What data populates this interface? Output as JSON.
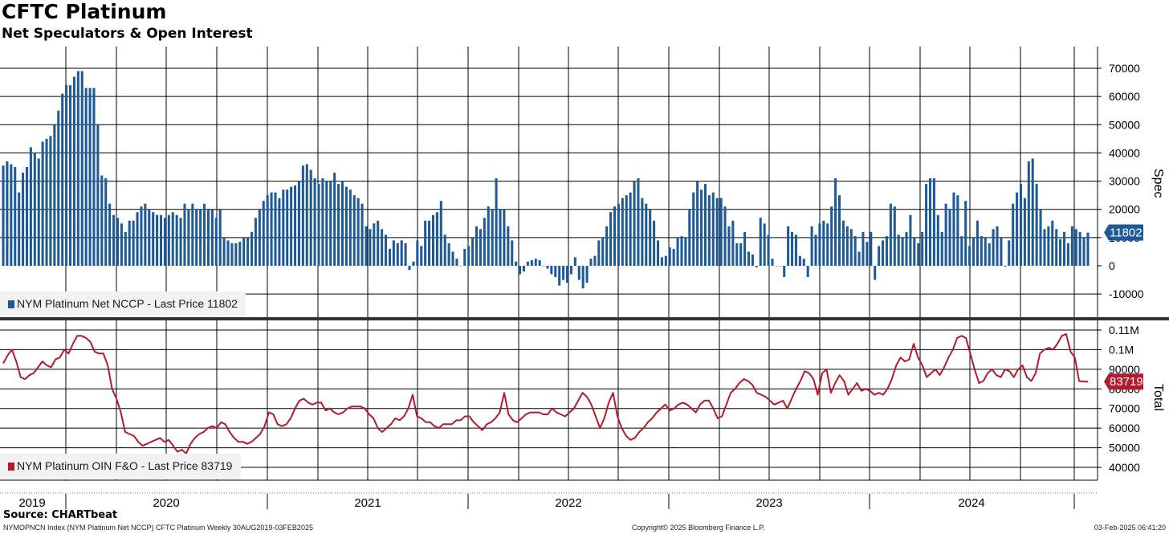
{
  "title": "CFTC Platinum",
  "subtitle": "Net Speculators & Open Interest",
  "source": "Source: CHARTbeat",
  "footer": {
    "left": "NYMOPNCN Index (NYM Platinum Net NCCP) CFTC Platinum  Weekly 30AUG2019-03FEB2025",
    "center": "Copyright© 2025 Bloomberg Finance L.P.",
    "right": "03-Feb-2025 06:41:20"
  },
  "colors": {
    "spec_bar": "#1f5a96",
    "total_line": "#b01b2e",
    "grid": "#000000",
    "divider": "#333333"
  },
  "chart_data": [
    {
      "type": "bar",
      "ylabel": "Spec",
      "ylim": [
        -18000,
        76000
      ],
      "yticks": [
        "70000",
        "60000",
        "50000",
        "40000",
        "30000",
        "20000",
        "10000",
        "0",
        "-10000"
      ],
      "ytick_values": [
        70000,
        60000,
        50000,
        40000,
        30000,
        20000,
        10000,
        0,
        -10000
      ],
      "last_value_label": "11802",
      "last_value": 11802,
      "legend": "NYM Platinum Net NCCP - Last Price 11802",
      "grid": true,
      "series": [
        {
          "name": "NYM Platinum Net NCCP",
          "values": [
            35500,
            37000,
            36000,
            35000,
            26000,
            33000,
            35000,
            42000,
            40000,
            38000,
            44000,
            45000,
            46000,
            50000,
            55000,
            61000,
            64000,
            64000,
            67000,
            69000,
            69000,
            63000,
            63000,
            63000,
            50000,
            32000,
            31000,
            22000,
            18000,
            17000,
            15000,
            12000,
            16000,
            16000,
            19000,
            21000,
            22000,
            20000,
            19000,
            18000,
            18000,
            17000,
            18000,
            19000,
            18000,
            17000,
            22000,
            20000,
            22000,
            20000,
            20000,
            22000,
            20000,
            20000,
            17000,
            20000,
            10000,
            9000,
            8000,
            8000,
            8500,
            10000,
            10000,
            12000,
            17000,
            20000,
            23000,
            25000,
            26000,
            26000,
            24000,
            27000,
            27000,
            28000,
            28500,
            30000,
            35500,
            36000,
            34000,
            31000,
            29000,
            31000,
            30000,
            30000,
            33000,
            29000,
            30000,
            28000,
            27000,
            25000,
            24000,
            22000,
            14000,
            13000,
            15000,
            16000,
            13000,
            11000,
            6000,
            9000,
            8000,
            9000,
            8000,
            -1500,
            1500,
            9000,
            7000,
            16000,
            16000,
            18000,
            19000,
            23000,
            11000,
            8000,
            5000,
            2500,
            0,
            6000,
            7000,
            10000,
            14000,
            13000,
            17000,
            21000,
            20000,
            31000,
            20000,
            20000,
            14000,
            9000,
            1500,
            -3000,
            -2000,
            1500,
            2000,
            2500,
            2000,
            0,
            -1000,
            -3000,
            -4000,
            -7000,
            -5000,
            -6000,
            -3000,
            3000,
            -5000,
            -8000,
            -6000,
            2500,
            3500,
            9000,
            10000,
            14000,
            19000,
            21000,
            22000,
            24000,
            25000,
            26000,
            30000,
            31000,
            24000,
            22000,
            20000,
            16000,
            9000,
            3000,
            3500,
            6500,
            6000,
            10000,
            10500,
            10000,
            20000,
            26000,
            30000,
            27000,
            29000,
            25000,
            26000,
            24000,
            24000,
            21000,
            14000,
            16000,
            8000,
            8000,
            12000,
            5000,
            4000,
            -500,
            17000,
            15000,
            11000,
            2500,
            0,
            0,
            -4000,
            14000,
            12000,
            11000,
            3500,
            2500,
            -4000,
            14000,
            11000,
            15000,
            16000,
            15000,
            21000,
            31000,
            25000,
            16000,
            14000,
            13000,
            10500,
            5000,
            12000,
            8500,
            12000,
            -5000,
            7000,
            9000,
            10500,
            22000,
            21000,
            11000,
            10000,
            12000,
            18000,
            10000,
            8000,
            12000,
            29000,
            31000,
            31000,
            18000,
            12000,
            22000,
            20000,
            26000,
            25000,
            10500,
            23000,
            7000,
            10000,
            16000,
            10500,
            10000,
            8000,
            13000,
            14000,
            10000,
            -300,
            9000,
            22000,
            26000,
            29000,
            24000,
            37000,
            38000,
            29000,
            20000,
            13000,
            14000,
            16000,
            13000,
            9500,
            12000,
            8000,
            14000,
            13000,
            12000,
            10000,
            11802
          ]
        }
      ]
    },
    {
      "type": "line",
      "ylabel": "Total",
      "ylim": [
        32000,
        113000
      ],
      "yticks": [
        "0.11M",
        "0.1M",
        "90000",
        "80000",
        "70000",
        "60000",
        "50000",
        "40000"
      ],
      "ytick_values": [
        110000,
        100000,
        90000,
        80000,
        70000,
        60000,
        50000,
        40000
      ],
      "last_value_label": "83719",
      "last_value": 83719,
      "legend": "NYM Platinum OIN F&O - Last Price 83719",
      "grid": true,
      "series": [
        {
          "name": "NYM Platinum OIN F&O",
          "values": [
            93000,
            97000,
            100000,
            94000,
            86000,
            85000,
            87000,
            88000,
            91000,
            94000,
            92000,
            91000,
            95000,
            96000,
            100000,
            98000,
            103000,
            107000,
            107000,
            106000,
            104000,
            99000,
            98000,
            98000,
            92000,
            80000,
            75000,
            68000,
            58000,
            57000,
            56000,
            53000,
            51000,
            52000,
            53000,
            54000,
            55000,
            53000,
            54000,
            51000,
            48000,
            49000,
            47000,
            52000,
            55000,
            57000,
            58000,
            60000,
            61000,
            60000,
            63000,
            62000,
            58000,
            55000,
            53000,
            53000,
            52000,
            53000,
            55000,
            57000,
            61000,
            68000,
            67000,
            62000,
            61000,
            62000,
            65000,
            70000,
            74000,
            75000,
            73000,
            72000,
            73000,
            73000,
            69000,
            70000,
            68000,
            67000,
            68000,
            70000,
            71000,
            71000,
            71000,
            70000,
            67000,
            65000,
            60000,
            58000,
            60000,
            62000,
            65000,
            64000,
            66000,
            70000,
            77000,
            66000,
            65000,
            63000,
            63000,
            61000,
            60000,
            62000,
            62000,
            62000,
            64000,
            64000,
            66000,
            66000,
            63000,
            61000,
            59000,
            62000,
            63000,
            65000,
            68000,
            78000,
            67000,
            64000,
            63000,
            65000,
            67000,
            68000,
            68000,
            68000,
            67000,
            67000,
            70000,
            68000,
            67000,
            66000,
            68000,
            70000,
            74000,
            78000,
            76000,
            72000,
            66000,
            60000,
            65000,
            73000,
            78000,
            66000,
            60000,
            56000,
            54000,
            55000,
            58000,
            60000,
            63000,
            65000,
            68000,
            70000,
            72000,
            69000,
            70000,
            72000,
            73000,
            72000,
            70000,
            68000,
            72000,
            74000,
            74000,
            70000,
            65000,
            66000,
            72000,
            78000,
            80000,
            83000,
            85000,
            84000,
            82000,
            78000,
            77000,
            76000,
            74000,
            72000,
            73000,
            74000,
            70000,
            75000,
            80000,
            84000,
            89000,
            88000,
            85000,
            77000,
            88000,
            90000,
            78000,
            83000,
            87000,
            84000,
            77000,
            80000,
            83000,
            79000,
            80000,
            79000,
            77000,
            78000,
            77000,
            80000,
            85000,
            92000,
            96000,
            94000,
            95000,
            103000,
            96000,
            92000,
            86000,
            88000,
            90000,
            87000,
            91000,
            96000,
            100000,
            106000,
            107000,
            106000,
            98000,
            90000,
            83000,
            84000,
            88000,
            90000,
            87000,
            86000,
            90000,
            89000,
            86000,
            90000,
            92000,
            86000,
            84000,
            88000,
            98000,
            100000,
            101000,
            100000,
            103000,
            107000,
            108000,
            99000,
            96000,
            84000,
            83719,
            83719
          ]
        }
      ]
    }
  ],
  "x_axis": {
    "labels": [
      "2019",
      "2020",
      "2021",
      "2022",
      "2023",
      "2024"
    ]
  }
}
